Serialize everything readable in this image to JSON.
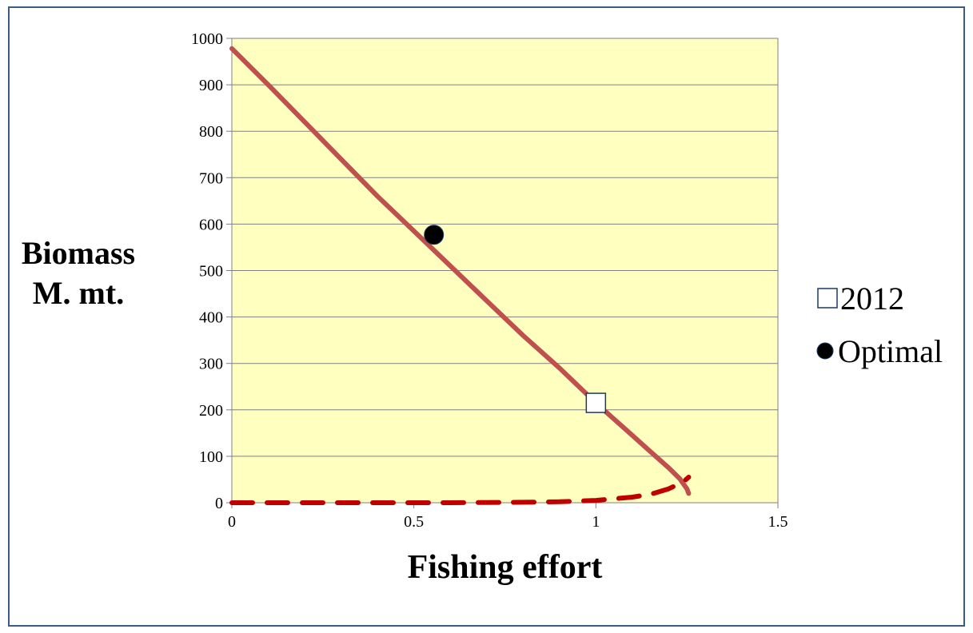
{
  "chart_data": {
    "type": "line",
    "title": "",
    "xlabel": "Fishing effort",
    "ylabel_lines": [
      "Biomass",
      "M. mt."
    ],
    "xlim": [
      0,
      1.5
    ],
    "ylim": [
      0,
      1000
    ],
    "x_ticks": [
      0,
      0.5,
      1,
      1.5
    ],
    "x_tick_labels": [
      "0",
      "0.5",
      "1",
      "1.5"
    ],
    "y_ticks": [
      0,
      100,
      200,
      300,
      400,
      500,
      600,
      700,
      800,
      900,
      1000
    ],
    "y_tick_labels": [
      "0",
      "100",
      "200",
      "300",
      "400",
      "500",
      "600",
      "700",
      "800",
      "900",
      "1000"
    ],
    "grid": "horizontal",
    "legend_position": "right",
    "plot_background": "#ffffc0",
    "series": [
      {
        "style": "solid",
        "color": "#c0504d",
        "x": [
          0,
          0.1,
          0.2,
          0.3,
          0.4,
          0.5,
          0.6,
          0.7,
          0.8,
          0.9,
          1.0,
          1.1,
          1.15,
          1.2,
          1.23,
          1.25,
          1.255
        ],
        "y": [
          978,
          900,
          820,
          740,
          660,
          585,
          510,
          435,
          360,
          290,
          215,
          145,
          110,
          75,
          52,
          30,
          20
        ]
      },
      {
        "style": "dashed",
        "color": "#c00000",
        "x": [
          0,
          0.2,
          0.4,
          0.6,
          0.8,
          0.9,
          1.0,
          1.1,
          1.15,
          1.2,
          1.24,
          1.255
        ],
        "y": [
          0,
          0,
          0,
          0,
          1,
          2,
          5,
          12,
          18,
          30,
          45,
          55
        ]
      },
      {
        "name": "2012",
        "style": "marker-open-square",
        "color": "#1f3864",
        "x": [
          1.0
        ],
        "y": [
          215
        ]
      },
      {
        "name": "Optimal",
        "style": "marker-filled-circle",
        "color": "#000000",
        "x": [
          0.555
        ],
        "y": [
          577
        ]
      }
    ]
  },
  "legend": {
    "items": [
      {
        "label": "2012",
        "icon": "open-square"
      },
      {
        "label": "Optimal",
        "icon": "filled-circle"
      }
    ]
  }
}
